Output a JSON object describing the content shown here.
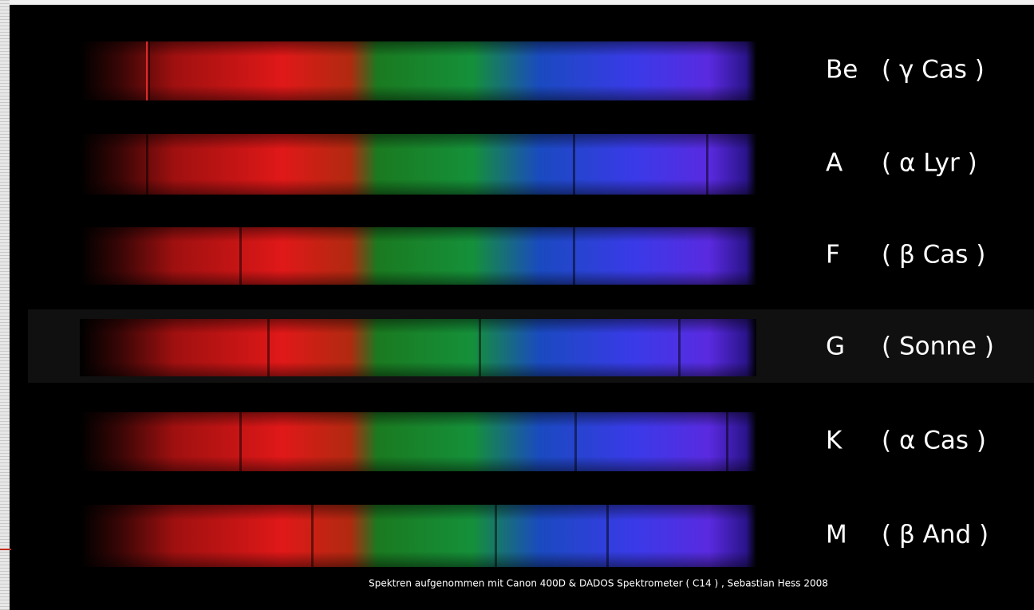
{
  "rows": [
    {
      "class": "Be",
      "star": "( γ Cas )"
    },
    {
      "class": "A",
      "star": "( α Lyr )"
    },
    {
      "class": "F",
      "star": "( β Cas )"
    },
    {
      "class": "G",
      "star": "( Sonne )"
    },
    {
      "class": "K",
      "star": "( α Cas  )"
    },
    {
      "class": "M",
      "star": "( β And )"
    }
  ],
  "caption": "Spektren aufgenommen mit  Canon 400D & DADOS Spektrometer ( C14 ) , Sebastian Hess 2008"
}
